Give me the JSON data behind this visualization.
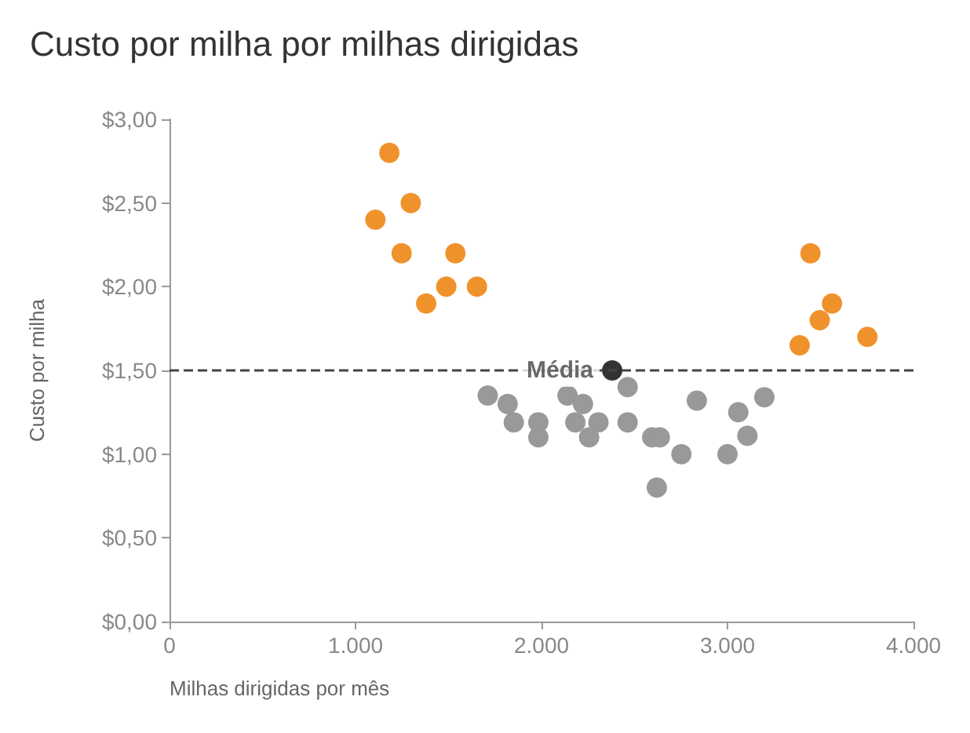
{
  "chart_data": {
    "type": "scatter",
    "title": "Custo por milha por milhas dirigidas",
    "xlabel": "Milhas dirigidas por mês",
    "ylabel": "Custo por milha",
    "series": [
      {
        "color": "#f0922b",
        "x": [
          1182,
          1107,
          1297,
          1248,
          1537,
          1380,
          1488,
          1653,
          3446,
          3562,
          3496,
          3388,
          3752
        ],
        "values": [
          2.8,
          2.4,
          2.5,
          2.2,
          2.2,
          1.9,
          2.0,
          2.0,
          2.2,
          1.9,
          1.8,
          1.65,
          1.7
        ]
      },
      {
        "color": "#999999",
        "x": [
          1711,
          1818,
          1851,
          1983,
          1983,
          2140,
          2223,
          2182,
          2306,
          2256,
          2463,
          2463,
          2595,
          2636,
          2752,
          2620,
          2835,
          3058,
          3107,
          3198,
          3000
        ],
        "values": [
          1.35,
          1.3,
          1.19,
          1.19,
          1.1,
          1.35,
          1.3,
          1.19,
          1.19,
          1.1,
          1.4,
          1.19,
          1.1,
          1.1,
          1.0,
          0.8,
          1.32,
          1.25,
          1.11,
          1.34,
          1.0
        ]
      },
      {
        "color": "#333333",
        "x": [
          2380
        ],
        "values": [
          1.5
        ]
      }
    ],
    "annotations": [
      {
        "text": "Média",
        "x": 2380,
        "y": 1.5
      }
    ],
    "ref_lines": [
      {
        "axis": "y",
        "value": 1.5,
        "color": "#444444",
        "line_style": "dashed"
      }
    ],
    "xlim": [
      0,
      4000
    ],
    "xticks": [
      {
        "value": 0,
        "label": "0"
      },
      {
        "value": 1000,
        "label": "1.000"
      },
      {
        "value": 2000,
        "label": "2.000"
      },
      {
        "value": 3000,
        "label": "3.000"
      },
      {
        "value": 4000,
        "label": "4.000"
      }
    ],
    "ylim": [
      0,
      3
    ],
    "yticks": [
      {
        "value": 0,
        "label": "$0,00"
      },
      {
        "value": 0.5,
        "label": "$0,50"
      },
      {
        "value": 1,
        "label": "$1,00"
      },
      {
        "value": 1.5,
        "label": "$1,50"
      },
      {
        "value": 2,
        "label": "$2,00"
      },
      {
        "value": 2.5,
        "label": "$2,50"
      },
      {
        "value": 3,
        "label": "$3,00"
      }
    ],
    "grid": false,
    "marker": "circle"
  }
}
